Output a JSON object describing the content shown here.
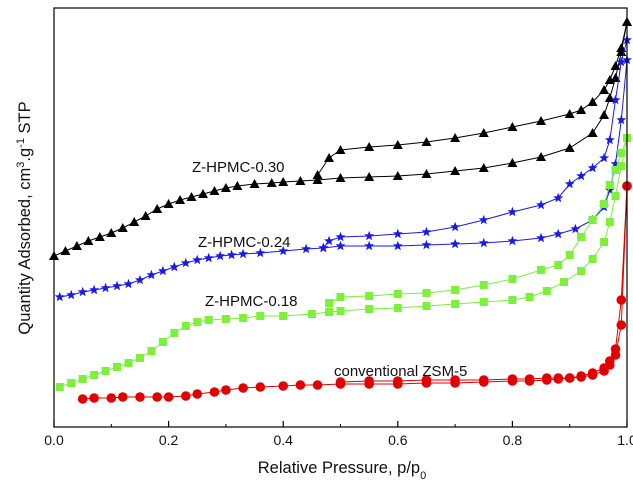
{
  "chart_data": {
    "type": "line",
    "xlabel": "Relative Pressure, p/p",
    "xlabel_sub": "0",
    "ylabel_parts": [
      "Quantity Adsorbed, cm",
      "3",
      ".g",
      "-1",
      " STP"
    ],
    "xlim": [
      0.0,
      1.0
    ],
    "xticks": [
      "0.0",
      "0.2",
      "0.4",
      "0.6",
      "0.8",
      "1.0"
    ],
    "y_tick_labels": false,
    "grid": false,
    "legend": "none",
    "series": [
      {
        "name": "Z-HPMC-0.30",
        "color": "#000000",
        "marker": "triangle",
        "adsorption": [
          [
            0.0,
            256
          ],
          [
            0.02,
            251
          ],
          [
            0.04,
            246
          ],
          [
            0.06,
            241
          ],
          [
            0.08,
            237
          ],
          [
            0.1,
            233
          ],
          [
            0.12,
            228
          ],
          [
            0.14,
            222
          ],
          [
            0.16,
            216
          ],
          [
            0.18,
            209
          ],
          [
            0.2,
            204
          ],
          [
            0.22,
            200
          ],
          [
            0.24,
            197
          ],
          [
            0.26,
            194
          ],
          [
            0.28,
            191
          ],
          [
            0.3,
            188
          ],
          [
            0.32,
            186
          ],
          [
            0.35,
            184
          ],
          [
            0.38,
            183
          ],
          [
            0.4,
            182
          ],
          [
            0.43,
            181
          ],
          [
            0.46,
            180
          ],
          [
            0.5,
            178
          ],
          [
            0.55,
            177
          ],
          [
            0.6,
            176
          ],
          [
            0.65,
            174
          ],
          [
            0.7,
            171
          ],
          [
            0.75,
            168
          ],
          [
            0.8,
            163
          ],
          [
            0.85,
            157
          ],
          [
            0.9,
            148
          ],
          [
            0.94,
            133
          ],
          [
            0.96,
            115
          ],
          [
            0.97,
            98
          ],
          [
            0.98,
            78
          ],
          [
            0.99,
            52
          ],
          [
            1.0,
            22
          ]
        ],
        "desorption": [
          [
            1.0,
            22
          ],
          [
            0.99,
            48
          ],
          [
            0.98,
            66
          ],
          [
            0.97,
            80
          ],
          [
            0.96,
            90
          ],
          [
            0.94,
            102
          ],
          [
            0.92,
            110
          ],
          [
            0.9,
            114
          ],
          [
            0.85,
            121
          ],
          [
            0.8,
            127
          ],
          [
            0.75,
            133
          ],
          [
            0.7,
            138
          ],
          [
            0.65,
            142
          ],
          [
            0.6,
            145
          ],
          [
            0.55,
            147
          ],
          [
            0.5,
            150
          ],
          [
            0.48,
            158
          ],
          [
            0.46,
            175
          ]
        ]
      },
      {
        "name": "Z-HPMC-0.24",
        "color": "#1a1ae6",
        "marker": "star",
        "adsorption": [
          [
            0.01,
            297
          ],
          [
            0.03,
            295
          ],
          [
            0.05,
            292
          ],
          [
            0.07,
            290
          ],
          [
            0.09,
            288
          ],
          [
            0.11,
            286
          ],
          [
            0.13,
            284
          ],
          [
            0.15,
            280
          ],
          [
            0.17,
            275
          ],
          [
            0.19,
            271
          ],
          [
            0.21,
            267
          ],
          [
            0.23,
            263
          ],
          [
            0.25,
            260
          ],
          [
            0.27,
            258
          ],
          [
            0.29,
            256
          ],
          [
            0.31,
            255
          ],
          [
            0.33,
            254
          ],
          [
            0.36,
            253
          ],
          [
            0.4,
            251
          ],
          [
            0.44,
            249
          ],
          [
            0.47,
            248
          ],
          [
            0.5,
            246
          ],
          [
            0.55,
            246
          ],
          [
            0.6,
            246
          ],
          [
            0.65,
            245
          ],
          [
            0.7,
            244
          ],
          [
            0.75,
            243
          ],
          [
            0.8,
            241
          ],
          [
            0.85,
            238
          ],
          [
            0.88,
            234
          ],
          [
            0.91,
            229
          ],
          [
            0.94,
            220
          ],
          [
            0.96,
            207
          ],
          [
            0.97,
            190
          ],
          [
            0.98,
            164
          ],
          [
            0.99,
            120
          ],
          [
            1.0,
            60
          ]
        ],
        "desorption": [
          [
            1.0,
            40
          ],
          [
            0.99,
            62
          ],
          [
            0.98,
            100
          ],
          [
            0.97,
            140
          ],
          [
            0.96,
            158
          ],
          [
            0.94,
            168
          ],
          [
            0.92,
            176
          ],
          [
            0.9,
            184
          ],
          [
            0.88,
            198
          ],
          [
            0.85,
            205
          ],
          [
            0.8,
            212
          ],
          [
            0.75,
            220
          ],
          [
            0.7,
            227
          ],
          [
            0.65,
            232
          ],
          [
            0.6,
            234
          ],
          [
            0.55,
            236
          ],
          [
            0.5,
            237
          ],
          [
            0.48,
            241
          ],
          [
            0.47,
            248
          ]
        ]
      },
      {
        "name": "Z-HPMC-0.18",
        "color": "#7cf03c",
        "marker": "square",
        "adsorption": [
          [
            0.01,
            387
          ],
          [
            0.03,
            383
          ],
          [
            0.05,
            379
          ],
          [
            0.07,
            375
          ],
          [
            0.09,
            371
          ],
          [
            0.11,
            367
          ],
          [
            0.13,
            363
          ],
          [
            0.15,
            358
          ],
          [
            0.17,
            351
          ],
          [
            0.19,
            342
          ],
          [
            0.21,
            333
          ],
          [
            0.23,
            326
          ],
          [
            0.25,
            322
          ],
          [
            0.27,
            320
          ],
          [
            0.3,
            319
          ],
          [
            0.33,
            318
          ],
          [
            0.36,
            316
          ],
          [
            0.4,
            316
          ],
          [
            0.45,
            314
          ],
          [
            0.48,
            312
          ],
          [
            0.5,
            311
          ],
          [
            0.55,
            309
          ],
          [
            0.6,
            308
          ],
          [
            0.65,
            306
          ],
          [
            0.7,
            304
          ],
          [
            0.75,
            302
          ],
          [
            0.8,
            300
          ],
          [
            0.83,
            297
          ],
          [
            0.86,
            291
          ],
          [
            0.89,
            282
          ],
          [
            0.92,
            271
          ],
          [
            0.94,
            259
          ],
          [
            0.96,
            242
          ],
          [
            0.97,
            222
          ],
          [
            0.98,
            196
          ],
          [
            0.99,
            166
          ],
          [
            1.0,
            138
          ]
        ],
        "desorption": [
          [
            1.0,
            138
          ],
          [
            0.99,
            153
          ],
          [
            0.98,
            170
          ],
          [
            0.97,
            185
          ],
          [
            0.96,
            204
          ],
          [
            0.94,
            220
          ],
          [
            0.92,
            237
          ],
          [
            0.9,
            255
          ],
          [
            0.88,
            265
          ],
          [
            0.85,
            270
          ],
          [
            0.8,
            279
          ],
          [
            0.75,
            285
          ],
          [
            0.7,
            290
          ],
          [
            0.65,
            293
          ],
          [
            0.6,
            294
          ],
          [
            0.55,
            296
          ],
          [
            0.5,
            297
          ],
          [
            0.48,
            303
          ]
        ]
      },
      {
        "name": "conventional ZSM-5",
        "color": "#e00000",
        "marker": "circle",
        "adsorption": [
          [
            0.05,
            399
          ],
          [
            0.07,
            398
          ],
          [
            0.1,
            398
          ],
          [
            0.12,
            397
          ],
          [
            0.15,
            397
          ],
          [
            0.18,
            397
          ],
          [
            0.2,
            397
          ],
          [
            0.23,
            396
          ],
          [
            0.25,
            394
          ],
          [
            0.28,
            392
          ],
          [
            0.3,
            390
          ],
          [
            0.33,
            388
          ],
          [
            0.36,
            387
          ],
          [
            0.4,
            386
          ],
          [
            0.43,
            385
          ],
          [
            0.46,
            385
          ],
          [
            0.5,
            384
          ],
          [
            0.55,
            384
          ],
          [
            0.6,
            384
          ],
          [
            0.65,
            383
          ],
          [
            0.7,
            383
          ],
          [
            0.75,
            382
          ],
          [
            0.8,
            381
          ],
          [
            0.83,
            381
          ],
          [
            0.86,
            380
          ],
          [
            0.88,
            379
          ],
          [
            0.9,
            378
          ],
          [
            0.92,
            376
          ],
          [
            0.94,
            373
          ],
          [
            0.96,
            368
          ],
          [
            0.97,
            361
          ],
          [
            0.98,
            349
          ],
          [
            0.99,
            300
          ],
          [
            1.0,
            186
          ]
        ],
        "desorption": [
          [
            1.0,
            186
          ],
          [
            0.99,
            325
          ],
          [
            0.98,
            355
          ],
          [
            0.97,
            365
          ],
          [
            0.96,
            371
          ],
          [
            0.94,
            375
          ],
          [
            0.92,
            377
          ],
          [
            0.9,
            378
          ],
          [
            0.88,
            378
          ],
          [
            0.86,
            378
          ],
          [
            0.83,
            379
          ],
          [
            0.8,
            379
          ],
          [
            0.75,
            380
          ],
          [
            0.7,
            380
          ],
          [
            0.65,
            380
          ],
          [
            0.6,
            381
          ],
          [
            0.55,
            381
          ],
          [
            0.5,
            382
          ]
        ]
      }
    ]
  }
}
